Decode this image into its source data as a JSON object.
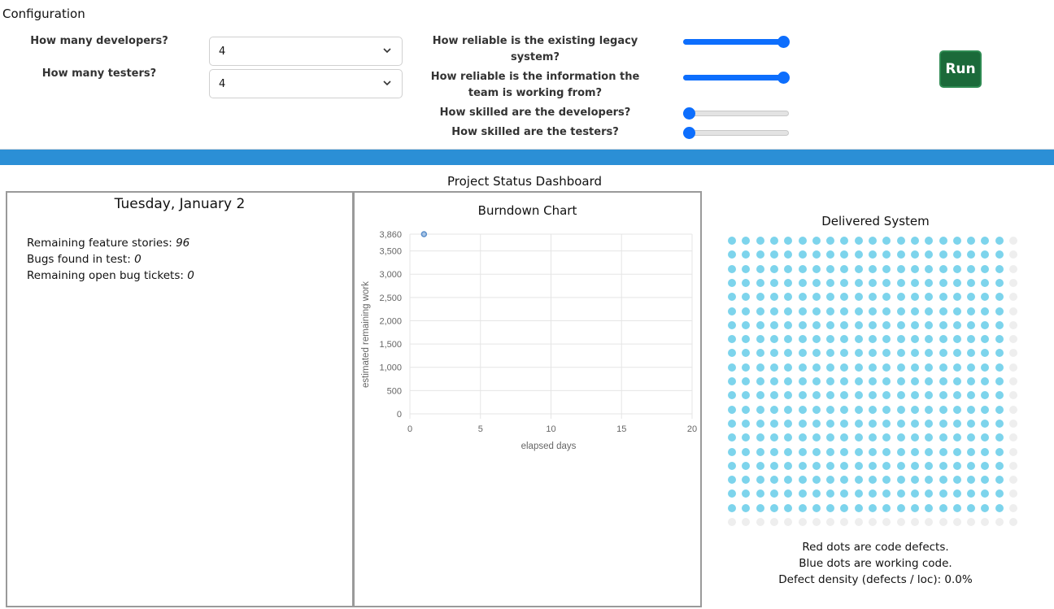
{
  "config": {
    "title": "Configuration",
    "developers": {
      "label": "How many developers?",
      "value": "4"
    },
    "testers": {
      "label": "How many testers?",
      "value": "4"
    },
    "sliders": [
      {
        "label_line1": "How reliable is the existing legacy",
        "label_line2": "system?",
        "level": 1.0
      },
      {
        "label_line1": "How reliable is the information the",
        "label_line2": "team is working from?",
        "level": 1.0
      },
      {
        "label_line1": "How skilled are the developers?",
        "label_line2": "",
        "level": 0.0
      },
      {
        "label_line1": "How skilled are the testers?",
        "label_line2": "",
        "level": 0.0
      }
    ],
    "run_label": "Run",
    "accent": "#0d6efd",
    "run_color": "#1b6a3a"
  },
  "dashboard": {
    "title": "Project Status Dashboard",
    "date": "Tuesday, January 2",
    "stats": [
      {
        "label": "Remaining feature stories:",
        "value": "96"
      },
      {
        "label": "Bugs found in test:",
        "value": "0"
      },
      {
        "label": "Remaining open bug tickets:",
        "value": "0"
      }
    ]
  },
  "chart_data": {
    "type": "scatter",
    "title": "Burndown Chart",
    "xlabel": "elapsed days",
    "ylabel": "estimated remaining work",
    "xlim": [
      0,
      20
    ],
    "ylim": [
      0,
      3860
    ],
    "xticks": [
      0,
      5,
      10,
      15,
      20
    ],
    "yticks": [
      0,
      500,
      1000,
      1500,
      2000,
      2500,
      3000,
      3500,
      3860
    ],
    "ytick_labels": [
      "0",
      "500",
      "1,000",
      "1,500",
      "2,000",
      "2,500",
      "3,000",
      "3,500",
      "3,860"
    ],
    "grid": true,
    "series": [
      {
        "points": [
          {
            "x": 1,
            "y": 3860
          }
        ],
        "color": "#5b8ec9"
      }
    ]
  },
  "delivered": {
    "title": "Delivered System",
    "rows": 21,
    "cols": 21,
    "working_color": "#7dd4ec",
    "pending_color": "#eeeeee",
    "defect_color": "#e53935",
    "working_rows": 20,
    "working_cols": 20,
    "defects": 0,
    "captions": [
      "Red dots are code defects.",
      "Blue dots are working code.",
      "Defect density (defects / loc): 0.0%"
    ]
  }
}
